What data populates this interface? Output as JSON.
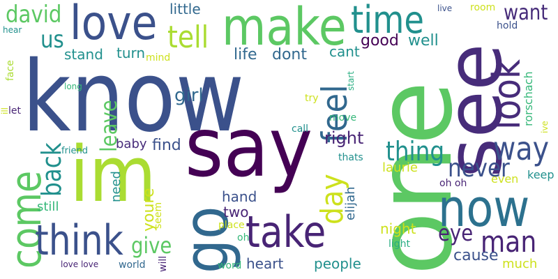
{
  "word_cloud": {
    "words": [
      "know",
      "one",
      "see",
      "say",
      "im",
      "make",
      "love",
      "come",
      "go",
      "take",
      "now",
      "think",
      "time",
      "look",
      "feel",
      "day",
      "tell",
      "david",
      "way",
      "thing",
      "never",
      "us",
      "back",
      "leave",
      "give",
      "eye",
      "man",
      "want",
      "right",
      "good",
      "well",
      "cant",
      "life",
      "dont",
      "little",
      "girl",
      "find",
      "stand",
      "turn",
      "mind",
      "baby",
      "need",
      "youre",
      "seem",
      "hand",
      "two",
      "place",
      "oh",
      "heart",
      "people",
      "cause",
      "night",
      "laurie",
      "light",
      "much",
      "elijah",
      "thats",
      "move",
      "call",
      "oh oh",
      "even",
      "keep",
      "rorschach",
      "ive",
      "start",
      "try",
      "hold",
      "room",
      "live",
      "face",
      "hear",
      "long",
      "let",
      "ill",
      "friend",
      "still",
      "love love",
      "world",
      "will",
      "word"
    ]
  }
}
